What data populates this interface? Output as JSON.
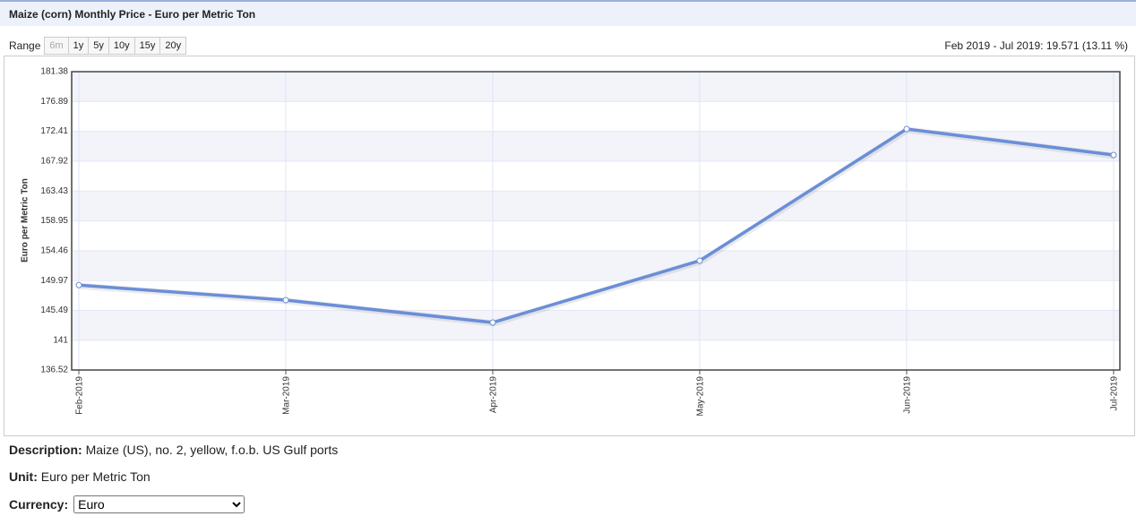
{
  "header": {
    "title": "Maize (corn) Monthly Price - Euro per Metric Ton"
  },
  "range": {
    "label": "Range",
    "buttons": [
      "6m",
      "1y",
      "5y",
      "10y",
      "15y",
      "20y"
    ],
    "summary": "Feb 2019 - Jul 2019: 19.571 (13.11 %)"
  },
  "chart_data": {
    "type": "line",
    "y_label": "Euro per Metric Ton",
    "categories": [
      "Feb-2019",
      "Mar-2019",
      "Apr-2019",
      "May-2019",
      "Jun-2019",
      "Jul-2019"
    ],
    "series": [
      {
        "name": "Maize (corn) Monthly Price",
        "color": "#6b8ed8",
        "values": [
          149.28,
          147.03,
          143.66,
          152.95,
          172.76,
          168.85
        ]
      }
    ],
    "ylim": [
      136.52,
      181.38
    ],
    "yticks": [
      136.52,
      141,
      145.49,
      149.97,
      154.46,
      158.95,
      163.43,
      167.92,
      172.41,
      176.89,
      181.38
    ],
    "grid": true,
    "legend": false
  },
  "info": {
    "description_label": "Description:",
    "description": "Maize (US), no. 2, yellow, f.o.b. US Gulf ports",
    "unit_label": "Unit:",
    "unit": "Euro per Metric Ton",
    "currency_label": "Currency:",
    "currency": "Euro"
  }
}
